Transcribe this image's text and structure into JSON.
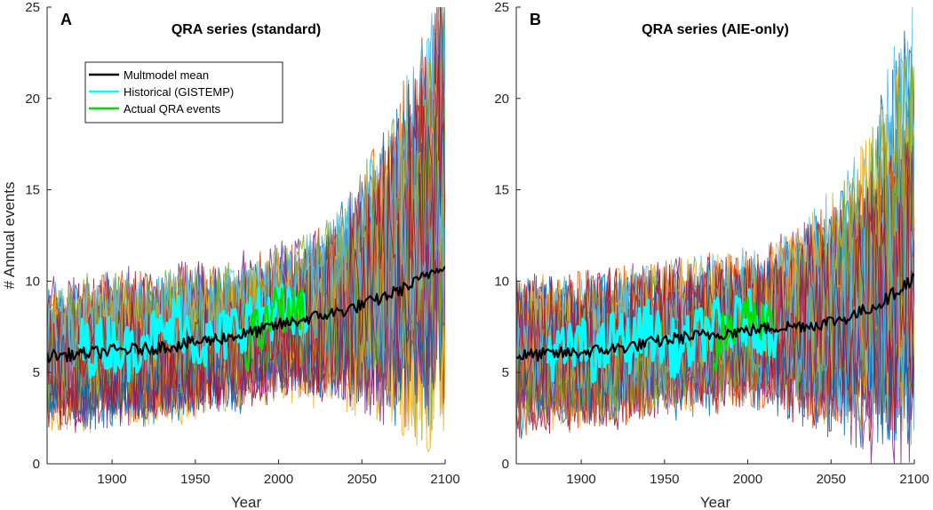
{
  "chart_data": [
    {
      "type": "line",
      "panel_label": "A",
      "title": "QRA series (standard)",
      "xlabel": "Year",
      "ylabel": "# Annual events",
      "xlim": [
        1861,
        2100
      ],
      "ylim": [
        0,
        25
      ],
      "xticks": [
        "1900",
        "1950",
        "2000",
        "2050",
        "2100"
      ],
      "yticks": [
        "0",
        "5",
        "10",
        "15",
        "20",
        "25"
      ],
      "grid": false,
      "legend_position": "top-left",
      "series": [
        {
          "name": "Multmodel mean",
          "color": "#000000",
          "x": [
            1861,
            1880,
            1900,
            1920,
            1940,
            1960,
            1980,
            2000,
            2020,
            2040,
            2060,
            2080,
            2100
          ],
          "values": [
            5.9,
            6.0,
            6.2,
            6.3,
            6.5,
            6.8,
            7.1,
            7.6,
            8.0,
            8.4,
            9.0,
            9.8,
            11.0
          ]
        },
        {
          "name": "Historical (GISTEMP)",
          "color": "#00ffff",
          "x": [
            1880,
            1890,
            1900,
            1910,
            1920,
            1930,
            1940,
            1950,
            1960,
            1970,
            1980,
            1990,
            2000,
            2010,
            2018
          ],
          "values": [
            6.5,
            6.3,
            6.8,
            6.0,
            7.2,
            6.8,
            8.0,
            6.8,
            6.5,
            7.2,
            7.8,
            8.2,
            8.5,
            8.0,
            7.8
          ]
        },
        {
          "name": "Actual QRA events",
          "color": "#00e000",
          "x": [
            1980,
            1985,
            1990,
            1995,
            2000,
            2005,
            2010,
            2015
          ],
          "values": [
            6.0,
            7.5,
            7.0,
            8.0,
            9.0,
            8.0,
            8.5,
            8.5
          ]
        }
      ]
    },
    {
      "type": "line",
      "panel_label": "B",
      "title": "QRA series (AIE-only)",
      "xlabel": "Year",
      "ylabel": "",
      "xlim": [
        1861,
        2100
      ],
      "ylim": [
        0,
        25
      ],
      "xticks": [
        "1900",
        "1950",
        "2000",
        "2050",
        "2100"
      ],
      "yticks": [
        "0",
        "5",
        "10",
        "15",
        "20",
        "25"
      ],
      "grid": false,
      "series": [
        {
          "name": "Multmodel mean",
          "color": "#000000",
          "x": [
            1861,
            1880,
            1900,
            1920,
            1940,
            1960,
            1980,
            2000,
            2020,
            2040,
            2060,
            2080,
            2100
          ],
          "values": [
            5.9,
            6.0,
            6.1,
            6.3,
            6.6,
            6.9,
            7.1,
            7.3,
            7.5,
            7.6,
            8.0,
            8.8,
            10.2
          ]
        },
        {
          "name": "Historical (GISTEMP)",
          "color": "#00ffff",
          "x": [
            1880,
            1890,
            1900,
            1910,
            1920,
            1930,
            1940,
            1950,
            1960,
            1970,
            1980,
            1990,
            2000,
            2010,
            2018
          ],
          "values": [
            6.2,
            6.0,
            6.5,
            5.8,
            7.0,
            6.5,
            7.5,
            6.5,
            6.2,
            7.0,
            7.5,
            7.5,
            8.0,
            7.5,
            7.3
          ]
        },
        {
          "name": "Actual QRA events",
          "color": "#00e000",
          "x": [
            1980,
            1985,
            1990,
            1995,
            2000,
            2005,
            2010,
            2015
          ],
          "values": [
            6.0,
            7.2,
            6.8,
            7.5,
            8.5,
            7.8,
            8.0,
            8.2
          ]
        }
      ]
    }
  ],
  "ensemble_colors": [
    "#0072bd",
    "#d95319",
    "#edb120",
    "#7e2f8e",
    "#77ac30",
    "#4dbeee",
    "#a2142f"
  ]
}
